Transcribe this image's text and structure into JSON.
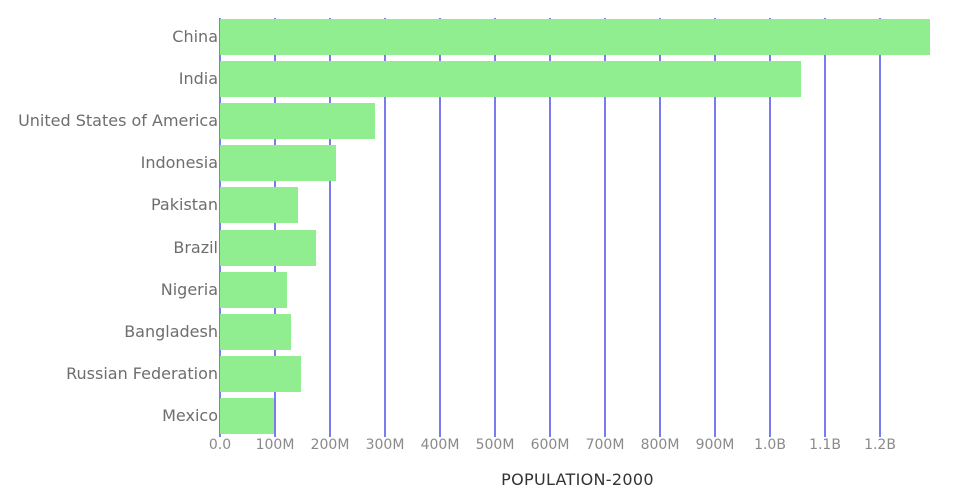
{
  "colors": {
    "background": "#ffffff",
    "bar": "#90ee90",
    "gridline": "#7b7bf0",
    "category_label": "#6e6e6e",
    "tick_label": "#8a8a8a",
    "axis_title": "#333333"
  },
  "chart_data": {
    "type": "bar",
    "orientation": "horizontal",
    "title": "",
    "xlabel": "POPULATION-2000",
    "ylabel": "",
    "categories": [
      "China",
      "India",
      "United States of America",
      "Indonesia",
      "Pakistan",
      "Brazil",
      "Nigeria",
      "Bangladesh",
      "Russian Federation",
      "Mexico"
    ],
    "values": [
      1290000000,
      1056600000,
      282200000,
      211500000,
      142300000,
      174800000,
      122300000,
      129200000,
      146600000,
      98000000
    ],
    "x_ticks": [
      "0.0",
      "100M",
      "200M",
      "300M",
      "400M",
      "500M",
      "600M",
      "700M",
      "800M",
      "900M",
      "1.0B",
      "1.1B",
      "1.2B"
    ],
    "xlim": [
      0,
      1300000000
    ],
    "grid": true,
    "legend": false
  }
}
